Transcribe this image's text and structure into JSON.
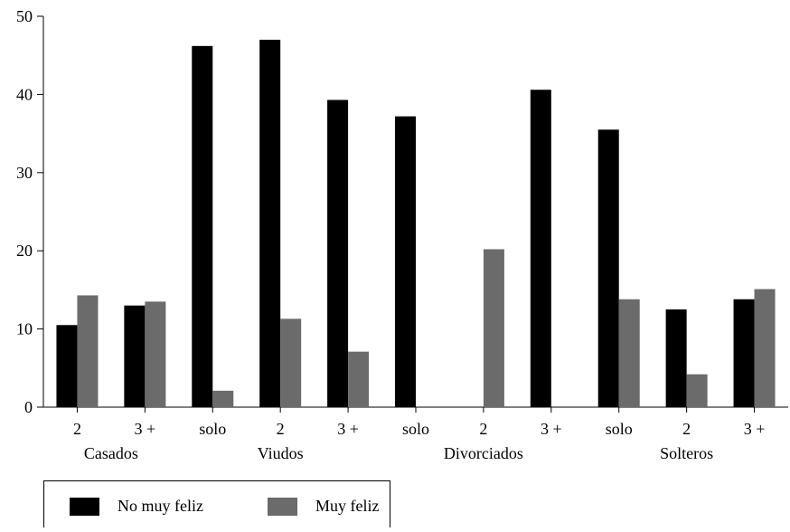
{
  "colors": {
    "no_muy_feliz": "#000000",
    "muy_feliz": "#6b6b6b"
  },
  "chart_data": {
    "type": "bar",
    "categories": [
      "2",
      "3 +",
      "solo",
      "2",
      "3 +",
      "solo",
      "2",
      "3 +",
      "solo",
      "2",
      "3 +"
    ],
    "groups": [
      {
        "label": "Casados",
        "categories": [
          "2",
          "3 +"
        ]
      },
      {
        "label": "Viudos",
        "categories": [
          "solo",
          "2",
          "3 +"
        ]
      },
      {
        "label": "Divorciados",
        "categories": [
          "solo",
          "2",
          "3 +"
        ]
      },
      {
        "label": "Solteros",
        "categories": [
          "solo",
          "2",
          "3 +"
        ]
      }
    ],
    "series": [
      {
        "name": "No muy feliz",
        "color": "#000000",
        "values": [
          10.5,
          13.0,
          46.2,
          47.0,
          39.3,
          37.2,
          0,
          40.6,
          35.5,
          12.5,
          13.8
        ]
      },
      {
        "name": "Muy feliz",
        "color": "#6b6b6b",
        "values": [
          14.3,
          13.5,
          2.1,
          11.3,
          7.1,
          0,
          20.2,
          0,
          13.8,
          4.2,
          15.1
        ]
      }
    ],
    "yticks": [
      0,
      10,
      20,
      30,
      40,
      50
    ],
    "ylim": [
      0,
      50
    ],
    "title": "",
    "xlabel": "",
    "ylabel": "",
    "legend": [
      "No muy feliz",
      "Muy feliz"
    ],
    "legend_position": "bottom-left",
    "grid": false
  }
}
